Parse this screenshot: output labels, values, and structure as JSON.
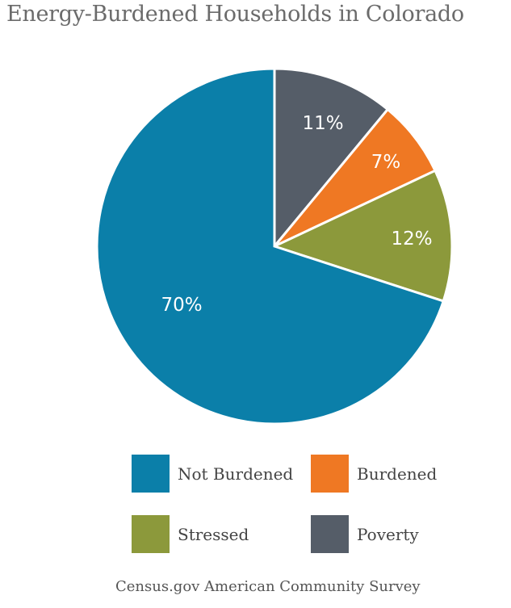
{
  "chart_data": {
    "type": "pie",
    "title": "Energy-Burdened Households in Colorado",
    "start": "top, clockwise",
    "slices": [
      {
        "name": "Poverty",
        "value": 11,
        "label": "11%",
        "color": "#555d68"
      },
      {
        "name": "Burdened",
        "value": 7,
        "label": "7%",
        "color": "#ef7823"
      },
      {
        "name": "Stressed",
        "value": 12,
        "label": "12%",
        "color": "#8c993b"
      },
      {
        "name": "Not Burdened",
        "value": 70,
        "label": "70%",
        "color": "#0b7fa9"
      }
    ],
    "legend": [
      {
        "name": "Not Burdened",
        "color": "#0b7fa9"
      },
      {
        "name": "Burdened",
        "color": "#ef7823"
      },
      {
        "name": "Stressed",
        "color": "#8c993b"
      },
      {
        "name": "Poverty",
        "color": "#555d68"
      }
    ],
    "legend_position": "bottom",
    "source": "Census.gov American Community Survey"
  }
}
